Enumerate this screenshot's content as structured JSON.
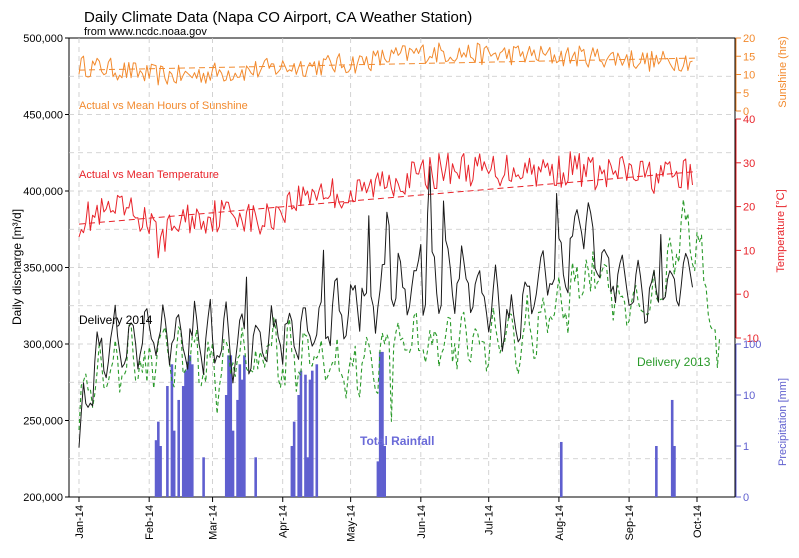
{
  "chart_data": {
    "type": "line",
    "title": "Daily Climate Data (Napa CO Airport, CA Weather Station)",
    "subtitle": "from www.ncdc.noaa.gov",
    "x_ticks": [
      "Jan-14",
      "Feb-14",
      "Mar-14",
      "Apr-14",
      "May-14",
      "Jun-14",
      "Jul-14",
      "Aug-14",
      "Sep-14",
      "Oct-14"
    ],
    "axes": {
      "discharge": {
        "label": "Daily discharge [m³/d]",
        "range": [
          200000,
          500000
        ],
        "ticks": [
          "200,000",
          "250,000",
          "300,000",
          "350,000",
          "400,000",
          "450,000",
          "500,000"
        ]
      },
      "sunshine": {
        "label": "Sunshine (hrs)",
        "range": [
          0,
          20
        ],
        "ticks": [
          "0",
          "5",
          "10",
          "15",
          "20"
        ]
      },
      "temperature": {
        "label": "Temperature [°C]",
        "range": [
          -10,
          40
        ],
        "ticks": [
          "-10",
          "0",
          "10",
          "20",
          "30",
          "40"
        ]
      },
      "precipitation": {
        "label": "Precipitation [mm]",
        "scale": "log",
        "ticks": [
          "0",
          "1",
          "10",
          "100"
        ]
      }
    },
    "annotations": {
      "sunshine": "Actual vs Mean Hours of Sunshine",
      "temperature": "Actual vs Mean Temperature",
      "delivery2014": "Delivery 2014",
      "delivery2013": "Delivery 2013",
      "rainfall": "Total Rainfall"
    },
    "colors": {
      "sunshine": "#f28a2e",
      "temperature": "#e8232a",
      "delivery2014": "#1a1a1a",
      "delivery2013": "#2a9a2a",
      "rainfall": "#5f5fcf",
      "grid": "#c8c8c8"
    },
    "series": {
      "sunshine_mean": [
        [
          0,
          11.2
        ],
        [
          273,
          14.5
        ]
      ],
      "temperature_mean": [
        [
          0,
          16
        ],
        [
          273,
          28
        ]
      ],
      "sunshine_anchors": [
        [
          0,
          12.5
        ],
        [
          15,
          11.5
        ],
        [
          30,
          10
        ],
        [
          45,
          9.5
        ],
        [
          60,
          10.5
        ],
        [
          75,
          11
        ],
        [
          90,
          12
        ],
        [
          105,
          12.5
        ],
        [
          120,
          13
        ],
        [
          135,
          14.5
        ],
        [
          150,
          16
        ],
        [
          165,
          16
        ],
        [
          180,
          15.5
        ],
        [
          195,
          15.5
        ],
        [
          210,
          15
        ],
        [
          225,
          15
        ],
        [
          240,
          14.5
        ],
        [
          255,
          13.5
        ],
        [
          270,
          14
        ]
      ],
      "temperature_anchors": [
        [
          0,
          17
        ],
        [
          20,
          19
        ],
        [
          30,
          17
        ],
        [
          35,
          12
        ],
        [
          45,
          17
        ],
        [
          60,
          18
        ],
        [
          70,
          19
        ],
        [
          80,
          16
        ],
        [
          90,
          20
        ],
        [
          105,
          24
        ],
        [
          120,
          22
        ],
        [
          135,
          26
        ],
        [
          150,
          27
        ],
        [
          165,
          29
        ],
        [
          180,
          28
        ],
        [
          195,
          29
        ],
        [
          210,
          28
        ],
        [
          220,
          29
        ],
        [
          230,
          27
        ],
        [
          240,
          28
        ],
        [
          250,
          27
        ],
        [
          260,
          27
        ],
        [
          270,
          27
        ]
      ],
      "delivery2014_anchors": [
        [
          0,
          240000
        ],
        [
          8,
          290000
        ],
        [
          20,
          300000
        ],
        [
          35,
          305000
        ],
        [
          50,
          302000
        ],
        [
          60,
          300000
        ],
        [
          75,
          305000
        ],
        [
          88,
          308000
        ],
        [
          95,
          306000
        ],
        [
          105,
          310000
        ],
        [
          115,
          320000
        ],
        [
          130,
          330000
        ],
        [
          140,
          335000
        ],
        [
          150,
          340000
        ],
        [
          165,
          345000
        ],
        [
          175,
          338000
        ],
        [
          182,
          325000
        ],
        [
          192,
          315000
        ],
        [
          205,
          345000
        ],
        [
          215,
          352000
        ],
        [
          222,
          385000
        ],
        [
          228,
          355000
        ],
        [
          235,
          345000
        ],
        [
          245,
          335000
        ],
        [
          255,
          330000
        ],
        [
          263,
          340000
        ],
        [
          270,
          350000
        ]
      ],
      "delivery2013_anchors": [
        [
          0,
          255000
        ],
        [
          10,
          280000
        ],
        [
          25,
          290000
        ],
        [
          40,
          295000
        ],
        [
          60,
          290000
        ],
        [
          80,
          295000
        ],
        [
          95,
          292000
        ],
        [
          110,
          290000
        ],
        [
          120,
          280000
        ],
        [
          135,
          296000
        ],
        [
          150,
          300000
        ],
        [
          165,
          305000
        ],
        [
          180,
          298000
        ],
        [
          195,
          305000
        ],
        [
          205,
          312000
        ],
        [
          215,
          328000
        ],
        [
          228,
          350000
        ],
        [
          238,
          330000
        ],
        [
          248,
          325000
        ],
        [
          258,
          335000
        ],
        [
          268,
          380000
        ],
        [
          275,
          355000
        ],
        [
          280,
          305000
        ]
      ],
      "rainfall_mm": [
        [
          34,
          1.3
        ],
        [
          35,
          3
        ],
        [
          36,
          1
        ],
        [
          39,
          15
        ],
        [
          41,
          40
        ],
        [
          42,
          2
        ],
        [
          44,
          8
        ],
        [
          46,
          15
        ],
        [
          47,
          30
        ],
        [
          48,
          45
        ],
        [
          49,
          60
        ],
        [
          50,
          40
        ],
        [
          55,
          0.6
        ],
        [
          65,
          10
        ],
        [
          66,
          60
        ],
        [
          67,
          60
        ],
        [
          68,
          2
        ],
        [
          70,
          8
        ],
        [
          71,
          40
        ],
        [
          72,
          20
        ],
        [
          73,
          60
        ],
        [
          78,
          0.6
        ],
        [
          94,
          1
        ],
        [
          95,
          3
        ],
        [
          97,
          10
        ],
        [
          98,
          30
        ],
        [
          100,
          25
        ],
        [
          101,
          0.6
        ],
        [
          102,
          20
        ],
        [
          103,
          30
        ],
        [
          105,
          40
        ],
        [
          132,
          0.5
        ],
        [
          133,
          70
        ],
        [
          134,
          70
        ],
        [
          135,
          1
        ],
        [
          213,
          1.2
        ],
        [
          255,
          1
        ],
        [
          262,
          8
        ],
        [
          263,
          1
        ]
      ]
    }
  }
}
